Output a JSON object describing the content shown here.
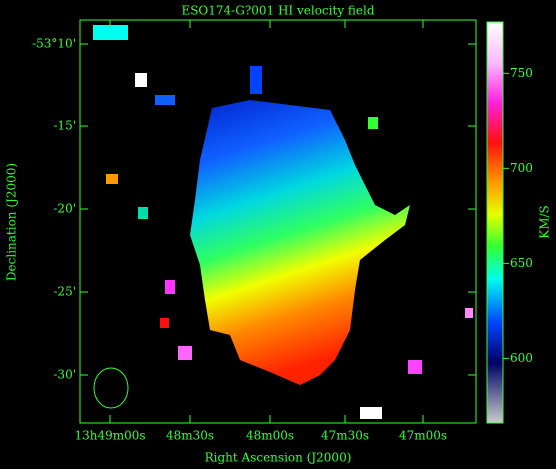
{
  "chart_data": {
    "type": "image",
    "title": "ESO174-G?001  HI velocity field",
    "xlabel": "Right Ascension (J2000)",
    "ylabel": "Declination (J2000)",
    "xtick_labels": [
      "13h49m00s",
      "48m30s",
      "48m00s",
      "47m30s",
      "47m00s"
    ],
    "ytick_labels": [
      "-53°10'",
      "-15'",
      "-20'",
      "-25'",
      "-30'"
    ],
    "colorbar": {
      "label": "KM/S",
      "lim": [
        566,
        777
      ],
      "ticks": [
        600,
        650,
        700,
        750
      ]
    },
    "color": "#33ff33"
  }
}
